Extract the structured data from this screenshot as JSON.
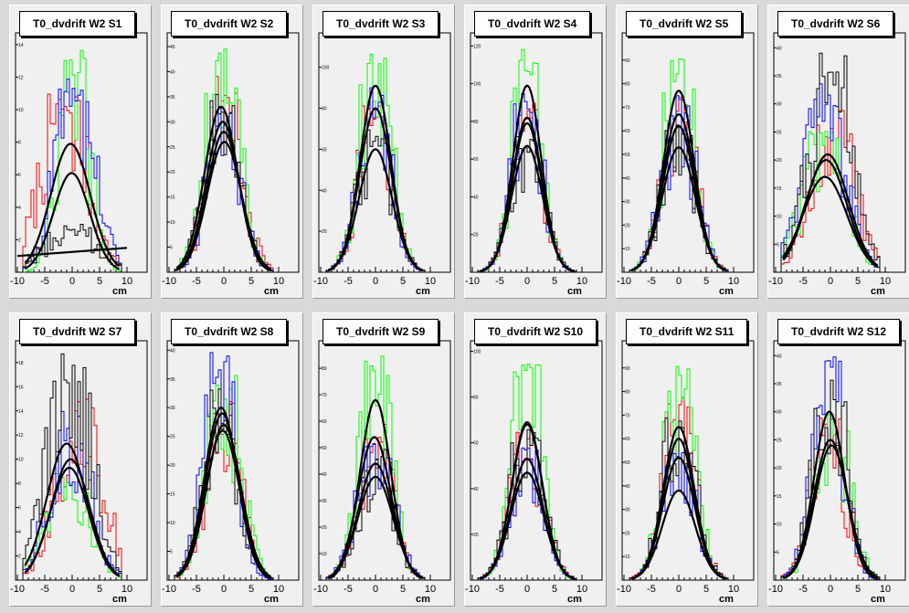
{
  "chart_data": [
    {
      "type": "histogram",
      "title": "T0_dvdrift W2 S1",
      "xlabel": "cm",
      "xlim": [
        -10,
        10
      ],
      "ylim": [
        0,
        14.5
      ],
      "xticks": [
        "-10",
        "-5",
        "0",
        "5",
        "10"
      ],
      "yticks": [
        "2",
        "4",
        "6",
        "8",
        "10",
        "12",
        "14"
      ],
      "fits": [
        {
          "color": "#000000",
          "amplitude": 7.9,
          "mean": -0.3,
          "sigma": 3.6
        },
        {
          "color": "#000000",
          "amplitude": 6.1,
          "mean": -0.1,
          "sigma": 3.3
        },
        {
          "color": "#000000",
          "linear": true,
          "y_start": 1.0,
          "y_end": 1.5
        }
      ],
      "series": [
        {
          "color": "#ff0000",
          "mean": -1.5,
          "sigma": 4.0,
          "peak": 11.0
        },
        {
          "color": "#00ff00",
          "mean": 0.3,
          "sigma": 2.6,
          "peak": 14.0
        },
        {
          "color": "#0000ff",
          "mean": 0.5,
          "sigma": 3.5,
          "peak": 12.0
        },
        {
          "color": "#000000",
          "mean": 0.0,
          "sigma": 4.5,
          "peak": 3.0
        }
      ]
    },
    {
      "type": "histogram",
      "title": "T0_dvdrift W2 S2",
      "xlabel": "cm",
      "xlim": [
        -10,
        10
      ],
      "ylim": [
        0,
        47
      ],
      "xticks": [
        "-10",
        "-5",
        "0",
        "5",
        "10"
      ],
      "yticks": [
        "5",
        "10",
        "15",
        "20",
        "25",
        "30",
        "35",
        "40",
        "45"
      ],
      "fits": [
        {
          "color": "#000000",
          "amplitude": 33,
          "mean": -0.5,
          "sigma": 3.0
        },
        {
          "color": "#000000",
          "amplitude": 30,
          "mean": -0.2,
          "sigma": 3.0
        },
        {
          "color": "#000000",
          "amplitude": 28,
          "mean": 0.0,
          "sigma": 3.0
        },
        {
          "color": "#000000",
          "amplitude": 26,
          "mean": 0.1,
          "sigma": 3.1
        }
      ],
      "series": [
        {
          "color": "#ff0000",
          "mean": 0.3,
          "sigma": 3.0,
          "peak": 40
        },
        {
          "color": "#00ff00",
          "mean": -0.3,
          "sigma": 3.0,
          "peak": 46
        },
        {
          "color": "#0000ff",
          "mean": 0.0,
          "sigma": 3.0,
          "peak": 34
        },
        {
          "color": "#000000",
          "mean": -0.3,
          "sigma": 3.0,
          "peak": 36
        }
      ]
    },
    {
      "type": "histogram",
      "title": "T0_dvdrift W2 S3",
      "xlabel": "cm",
      "xlim": [
        -10,
        10
      ],
      "ylim": [
        0,
        115
      ],
      "xticks": [
        "-10",
        "-5",
        "0",
        "5",
        "10"
      ],
      "yticks": [
        "20",
        "40",
        "60",
        "80",
        "100"
      ],
      "fits": [
        {
          "color": "#000000",
          "amplitude": 91,
          "mean": 0.0,
          "sigma": 2.8
        },
        {
          "color": "#000000",
          "amplitude": 80,
          "mean": 0.0,
          "sigma": 2.9
        },
        {
          "color": "#000000",
          "amplitude": 60,
          "mean": 0.0,
          "sigma": 3.0
        }
      ],
      "series": [
        {
          "color": "#ff0000",
          "mean": 0.0,
          "sigma": 2.9,
          "peak": 85
        },
        {
          "color": "#00ff00",
          "mean": 0.0,
          "sigma": 2.8,
          "peak": 110
        },
        {
          "color": "#0000ff",
          "mean": 0.0,
          "sigma": 2.8,
          "peak": 92
        },
        {
          "color": "#000000",
          "mean": 0.0,
          "sigma": 3.0,
          "peak": 70
        }
      ]
    },
    {
      "type": "histogram",
      "title": "T0_dvdrift W2 S4",
      "xlabel": "cm",
      "xlim": [
        -10,
        10
      ],
      "ylim": [
        0,
        125
      ],
      "xticks": [
        "-10",
        "-5",
        "0",
        "5",
        "10"
      ],
      "yticks": [
        "20",
        "40",
        "60",
        "80",
        "100",
        "120"
      ],
      "fits": [
        {
          "color": "#000000",
          "amplitude": 99,
          "mean": 0.0,
          "sigma": 2.6
        },
        {
          "color": "#000000",
          "amplitude": 82,
          "mean": 0.0,
          "sigma": 2.7
        },
        {
          "color": "#000000",
          "amplitude": 79,
          "mean": 0.0,
          "sigma": 2.7
        },
        {
          "color": "#000000",
          "amplitude": 67,
          "mean": 0.0,
          "sigma": 2.8
        }
      ],
      "series": [
        {
          "color": "#ff0000",
          "mean": 0.0,
          "sigma": 2.7,
          "peak": 90
        },
        {
          "color": "#00ff00",
          "mean": 0.0,
          "sigma": 2.6,
          "peak": 120
        },
        {
          "color": "#0000ff",
          "mean": 0.0,
          "sigma": 2.7,
          "peak": 95
        },
        {
          "color": "#000000",
          "mean": 0.0,
          "sigma": 2.8,
          "peak": 75
        }
      ]
    },
    {
      "type": "histogram",
      "title": "T0_dvdrift W2 S5",
      "xlabel": "cm",
      "xlim": [
        -10,
        10
      ],
      "ylim": [
        0,
        100
      ],
      "xticks": [
        "-10",
        "-5",
        "0",
        "5",
        "10"
      ],
      "yticks": [
        "10",
        "20",
        "30",
        "40",
        "50",
        "60",
        "70",
        "80",
        "90"
      ],
      "fits": [
        {
          "color": "#000000",
          "amplitude": 77,
          "mean": 0.0,
          "sigma": 2.8
        },
        {
          "color": "#000000",
          "amplitude": 67,
          "mean": 0.0,
          "sigma": 2.9
        },
        {
          "color": "#000000",
          "amplitude": 62,
          "mean": 0.0,
          "sigma": 2.9
        },
        {
          "color": "#000000",
          "amplitude": 53,
          "mean": 0.0,
          "sigma": 3.0
        }
      ],
      "series": [
        {
          "color": "#ff0000",
          "mean": 0.0,
          "sigma": 2.9,
          "peak": 80
        },
        {
          "color": "#00ff00",
          "mean": 0.0,
          "sigma": 2.8,
          "peak": 95
        },
        {
          "color": "#0000ff",
          "mean": 0.0,
          "sigma": 2.9,
          "peak": 75
        },
        {
          "color": "#000000",
          "mean": 0.0,
          "sigma": 3.0,
          "peak": 65
        }
      ]
    },
    {
      "type": "histogram",
      "title": "T0_dvdrift W2 S6",
      "xlabel": "cm",
      "xlim": [
        -10,
        10
      ],
      "ylim": [
        0,
        42
      ],
      "xticks": [
        "-10",
        "-5",
        "0",
        "5",
        "10"
      ],
      "yticks": [
        "5",
        "10",
        "15",
        "20",
        "25",
        "30",
        "35",
        "40"
      ],
      "fits": [
        {
          "color": "#000000",
          "amplitude": 21,
          "mean": -0.5,
          "sigma": 3.8
        },
        {
          "color": "#000000",
          "amplitude": 20,
          "mean": -0.8,
          "sigma": 3.8
        },
        {
          "color": "#000000",
          "amplitude": 17,
          "mean": -1.0,
          "sigma": 4.0
        }
      ],
      "series": [
        {
          "color": "#ff0000",
          "mean": 0.5,
          "sigma": 3.8,
          "peak": 30
        },
        {
          "color": "#00ff00",
          "mean": -1.0,
          "sigma": 3.8,
          "peak": 26
        },
        {
          "color": "#0000ff",
          "mean": -1.5,
          "sigma": 3.8,
          "peak": 34
        },
        {
          "color": "#000000",
          "mean": 0.0,
          "sigma": 3.8,
          "peak": 40
        }
      ]
    },
    {
      "type": "histogram",
      "title": "T0_dvdrift W2 S7",
      "xlabel": "cm",
      "xlim": [
        -10,
        10
      ],
      "ylim": [
        0,
        19.5
      ],
      "xticks": [
        "-10",
        "-5",
        "0",
        "5",
        "10"
      ],
      "yticks": [
        "2",
        "4",
        "6",
        "8",
        "10",
        "12",
        "14",
        "16",
        "18"
      ],
      "fits": [
        {
          "color": "#000000",
          "amplitude": 11.3,
          "mean": -1.0,
          "sigma": 3.6
        },
        {
          "color": "#000000",
          "amplitude": 10.0,
          "mean": -0.3,
          "sigma": 3.5
        },
        {
          "color": "#000000",
          "amplitude": 9.3,
          "mean": -0.5,
          "sigma": 3.5
        }
      ],
      "series": [
        {
          "color": "#ff0000",
          "mean": 1.5,
          "sigma": 4.0,
          "peak": 15
        },
        {
          "color": "#00ff00",
          "mean": -1.0,
          "sigma": 3.8,
          "peak": 9
        },
        {
          "color": "#0000ff",
          "mean": -0.5,
          "sigma": 3.5,
          "peak": 14
        },
        {
          "color": "#000000",
          "mean": -0.5,
          "sigma": 3.8,
          "peak": 19
        }
      ]
    },
    {
      "type": "histogram",
      "title": "T0_dvdrift W2 S8",
      "xlabel": "cm",
      "xlim": [
        -10,
        10
      ],
      "ylim": [
        0,
        41
      ],
      "xticks": [
        "-10",
        "-5",
        "0",
        "5",
        "10"
      ],
      "yticks": [
        "5",
        "10",
        "15",
        "20",
        "25",
        "30",
        "35",
        "40"
      ],
      "fits": [
        {
          "color": "#000000",
          "amplitude": 30,
          "mean": -0.5,
          "sigma": 3.0
        },
        {
          "color": "#000000",
          "amplitude": 29,
          "mean": -0.3,
          "sigma": 3.0
        },
        {
          "color": "#000000",
          "amplitude": 27,
          "mean": 0.0,
          "sigma": 3.1
        },
        {
          "color": "#000000",
          "amplitude": 26,
          "mean": -0.2,
          "sigma": 3.1
        }
      ],
      "series": [
        {
          "color": "#ff0000",
          "mean": 0.0,
          "sigma": 3.0,
          "peak": 33
        },
        {
          "color": "#00ff00",
          "mean": 0.0,
          "sigma": 3.0,
          "peak": 36
        },
        {
          "color": "#0000ff",
          "mean": -0.8,
          "sigma": 2.8,
          "peak": 40
        },
        {
          "color": "#000000",
          "mean": -0.5,
          "sigma": 3.0,
          "peak": 35
        }
      ]
    },
    {
      "type": "histogram",
      "title": "T0_dvdrift W2 S9",
      "xlabel": "cm",
      "xlim": [
        -10,
        10
      ],
      "ylim": [
        0,
        89
      ],
      "xticks": [
        "-10",
        "-5",
        "0",
        "5",
        "10"
      ],
      "yticks": [
        "10",
        "20",
        "30",
        "40",
        "50",
        "60",
        "70",
        "80"
      ],
      "fits": [
        {
          "color": "#000000",
          "amplitude": 68,
          "mean": 0.0,
          "sigma": 2.8
        },
        {
          "color": "#000000",
          "amplitude": 54,
          "mean": -0.2,
          "sigma": 3.0
        },
        {
          "color": "#000000",
          "amplitude": 44,
          "mean": 0.0,
          "sigma": 3.1
        },
        {
          "color": "#000000",
          "amplitude": 39,
          "mean": 0.0,
          "sigma": 3.2
        }
      ],
      "series": [
        {
          "color": "#ff0000",
          "mean": 0.0,
          "sigma": 3.0,
          "peak": 60
        },
        {
          "color": "#00ff00",
          "mean": 0.0,
          "sigma": 2.8,
          "peak": 86
        },
        {
          "color": "#0000ff",
          "mean": 0.0,
          "sigma": 3.1,
          "peak": 55
        },
        {
          "color": "#000000",
          "mean": 0.0,
          "sigma": 3.0,
          "peak": 50
        }
      ]
    },
    {
      "type": "histogram",
      "title": "T0_dvdrift W2 S10",
      "xlabel": "cm",
      "xlim": [
        -10,
        10
      ],
      "ylim": [
        0,
        103
      ],
      "xticks": [
        "-10",
        "-5",
        "0",
        "5",
        "10"
      ],
      "yticks": [
        "20",
        "40",
        "60",
        "80",
        "100"
      ],
      "fits": [
        {
          "color": "#000000",
          "amplitude": 69,
          "mean": 0.0,
          "sigma": 2.8
        },
        {
          "color": "#000000",
          "amplitude": 68,
          "mean": 0.0,
          "sigma": 2.8
        },
        {
          "color": "#000000",
          "amplitude": 53,
          "mean": 0.0,
          "sigma": 2.9
        },
        {
          "color": "#000000",
          "amplitude": 47,
          "mean": 0.0,
          "sigma": 3.0
        }
      ],
      "series": [
        {
          "color": "#ff0000",
          "mean": 0.0,
          "sigma": 2.9,
          "peak": 65
        },
        {
          "color": "#00ff00",
          "mean": 0.0,
          "sigma": 2.7,
          "peak": 100
        },
        {
          "color": "#0000ff",
          "mean": 0.0,
          "sigma": 2.9,
          "peak": 60
        },
        {
          "color": "#000000",
          "mean": 0.0,
          "sigma": 2.9,
          "peak": 70
        }
      ]
    },
    {
      "type": "histogram",
      "title": "T0_dvdrift W2 S11",
      "xlabel": "cm",
      "xlim": [
        -10,
        10
      ],
      "ylim": [
        0,
        100
      ],
      "xticks": [
        "-10",
        "-5",
        "0",
        "5",
        "10"
      ],
      "yticks": [
        "10",
        "20",
        "30",
        "40",
        "50",
        "60",
        "70",
        "80",
        "90"
      ],
      "fits": [
        {
          "color": "#000000",
          "amplitude": 65,
          "mean": 0.0,
          "sigma": 2.8
        },
        {
          "color": "#000000",
          "amplitude": 60,
          "mean": 0.0,
          "sigma": 2.8
        },
        {
          "color": "#000000",
          "amplitude": 52,
          "mean": 0.0,
          "sigma": 2.9
        },
        {
          "color": "#000000",
          "amplitude": 38,
          "mean": 0.0,
          "sigma": 3.0
        }
      ],
      "series": [
        {
          "color": "#ff0000",
          "mean": 0.0,
          "sigma": 2.9,
          "peak": 80
        },
        {
          "color": "#00ff00",
          "mean": 0.0,
          "sigma": 2.8,
          "peak": 95
        },
        {
          "color": "#0000ff",
          "mean": 0.0,
          "sigma": 2.9,
          "peak": 55
        },
        {
          "color": "#000000",
          "mean": 0.0,
          "sigma": 2.9,
          "peak": 70
        }
      ]
    },
    {
      "type": "histogram",
      "title": "T0_dvdrift W2 S12",
      "xlabel": "cm",
      "xlim": [
        -10,
        10
      ],
      "ylim": [
        0,
        42
      ],
      "xticks": [
        "-10",
        "-5",
        "0",
        "5",
        "10"
      ],
      "yticks": [
        "5",
        "10",
        "15",
        "20",
        "25",
        "30",
        "35",
        "40"
      ],
      "fits": [
        {
          "color": "#000000",
          "amplitude": 30,
          "mean": -0.2,
          "sigma": 2.8
        },
        {
          "color": "#000000",
          "amplitude": 25,
          "mean": 0.0,
          "sigma": 3.0
        },
        {
          "color": "#000000",
          "amplitude": 24,
          "mean": 0.2,
          "sigma": 3.0
        }
      ],
      "series": [
        {
          "color": "#ff0000",
          "mean": -0.5,
          "sigma": 3.0,
          "peak": 30
        },
        {
          "color": "#00ff00",
          "mean": 0.5,
          "sigma": 3.0,
          "peak": 30
        },
        {
          "color": "#0000ff",
          "mean": -0.5,
          "sigma": 2.8,
          "peak": 40
        },
        {
          "color": "#000000",
          "mean": 0.0,
          "sigma": 3.0,
          "peak": 36
        }
      ]
    }
  ]
}
